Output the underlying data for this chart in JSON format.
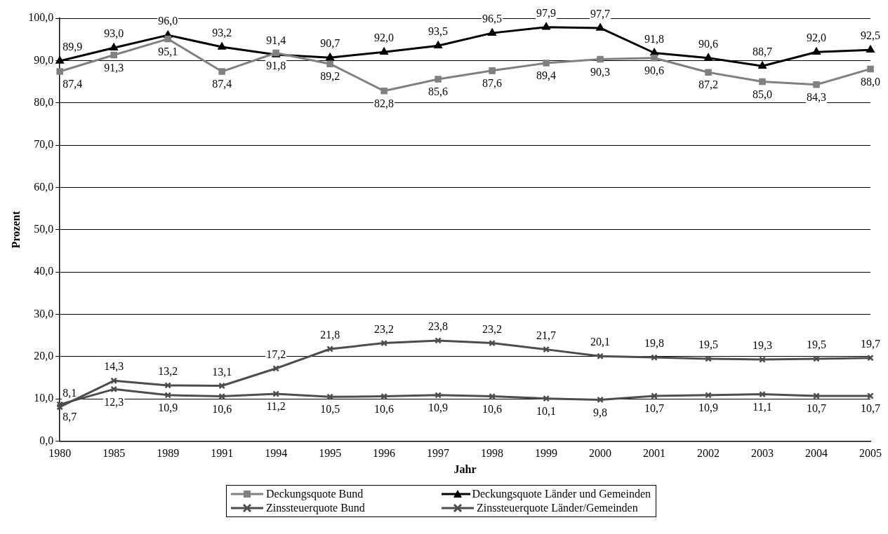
{
  "chart_data": {
    "type": "line",
    "xlabel": "Jahr",
    "ylabel": "Prozent",
    "categories": [
      "1980",
      "1985",
      "1989",
      "1991",
      "1994",
      "1995",
      "1996",
      "1997",
      "1998",
      "1999",
      "2000",
      "2001",
      "2002",
      "2003",
      "2004",
      "2005"
    ],
    "series": [
      {
        "name": "Deckungsquote Bund",
        "color": "#808080",
        "marker": "square",
        "values": [
          87.4,
          91.3,
          95.1,
          87.4,
          91.8,
          89.2,
          82.8,
          85.6,
          87.6,
          89.4,
          90.3,
          90.6,
          87.2,
          85.0,
          84.3,
          88.0
        ],
        "value_labels": [
          "87,4",
          "91,3",
          "95,1",
          "87,4",
          "91,8",
          "89,2",
          "82,8",
          "85,6",
          "87,6",
          "89,4",
          "90,3",
          "90,6",
          "87,2",
          "85,0",
          "84,3",
          "88,0"
        ]
      },
      {
        "name": "Deckungsquote Länder und Gemeinden",
        "color": "#000000",
        "marker": "triangle",
        "values": [
          89.9,
          93.0,
          96.0,
          93.2,
          91.4,
          90.7,
          92.0,
          93.5,
          96.5,
          97.9,
          97.7,
          91.8,
          90.6,
          88.7,
          92.0,
          92.5
        ],
        "value_labels": [
          "89,9",
          "93,0",
          "96,0",
          "93,2",
          "91,4",
          "90,7",
          "92,0",
          "93,5",
          "96,5",
          "97,9",
          "97,7",
          "91,8",
          "90,6",
          "88,7",
          "92,0",
          "92,5"
        ]
      },
      {
        "name": "Zinssteuerquote Bund",
        "color": "#4d4d4d",
        "marker": "cross",
        "values": [
          8.1,
          14.3,
          13.2,
          13.1,
          17.2,
          21.8,
          23.2,
          23.8,
          23.2,
          21.7,
          20.1,
          19.8,
          19.5,
          19.3,
          19.5,
          19.7
        ],
        "value_labels": [
          "8,1",
          "14,3",
          "13,2",
          "13,1",
          "17,2",
          "21,8",
          "23,2",
          "23,8",
          "23,2",
          "21,7",
          "20,1",
          "19,8",
          "19,5",
          "19,3",
          "19,5",
          "19,7"
        ]
      },
      {
        "name": "Zinssteuerquote Länder/Gemeinden",
        "color": "#4d4d4d",
        "marker": "cross",
        "values": [
          8.7,
          12.3,
          10.9,
          10.6,
          11.2,
          10.5,
          10.6,
          10.9,
          10.6,
          10.1,
          9.8,
          10.7,
          10.9,
          11.1,
          10.7,
          10.7
        ],
        "value_labels": [
          "8,7",
          "12,3",
          "10,9",
          "10,6",
          "11,2",
          "10,5",
          "10,6",
          "10,9",
          "10,6",
          "10,1",
          "9,8",
          "10,7",
          "10,9",
          "11,1",
          "10,7",
          "10,7"
        ]
      }
    ],
    "ylim": [
      0,
      100
    ],
    "yticks": [
      {
        "value": 0,
        "label": "0,0"
      },
      {
        "value": 10,
        "label": "10,0"
      },
      {
        "value": 20,
        "label": "20,0"
      },
      {
        "value": 30,
        "label": "30,0"
      },
      {
        "value": 40,
        "label": "40,0"
      },
      {
        "value": 50,
        "label": "50,0"
      },
      {
        "value": 60,
        "label": "60,0"
      },
      {
        "value": 70,
        "label": "70,0"
      },
      {
        "value": 80,
        "label": "80,0"
      },
      {
        "value": 90,
        "label": "90,0"
      },
      {
        "value": 100,
        "label": "100,0"
      }
    ],
    "grid": "y",
    "legend": "bottom",
    "line_style": "solid"
  }
}
